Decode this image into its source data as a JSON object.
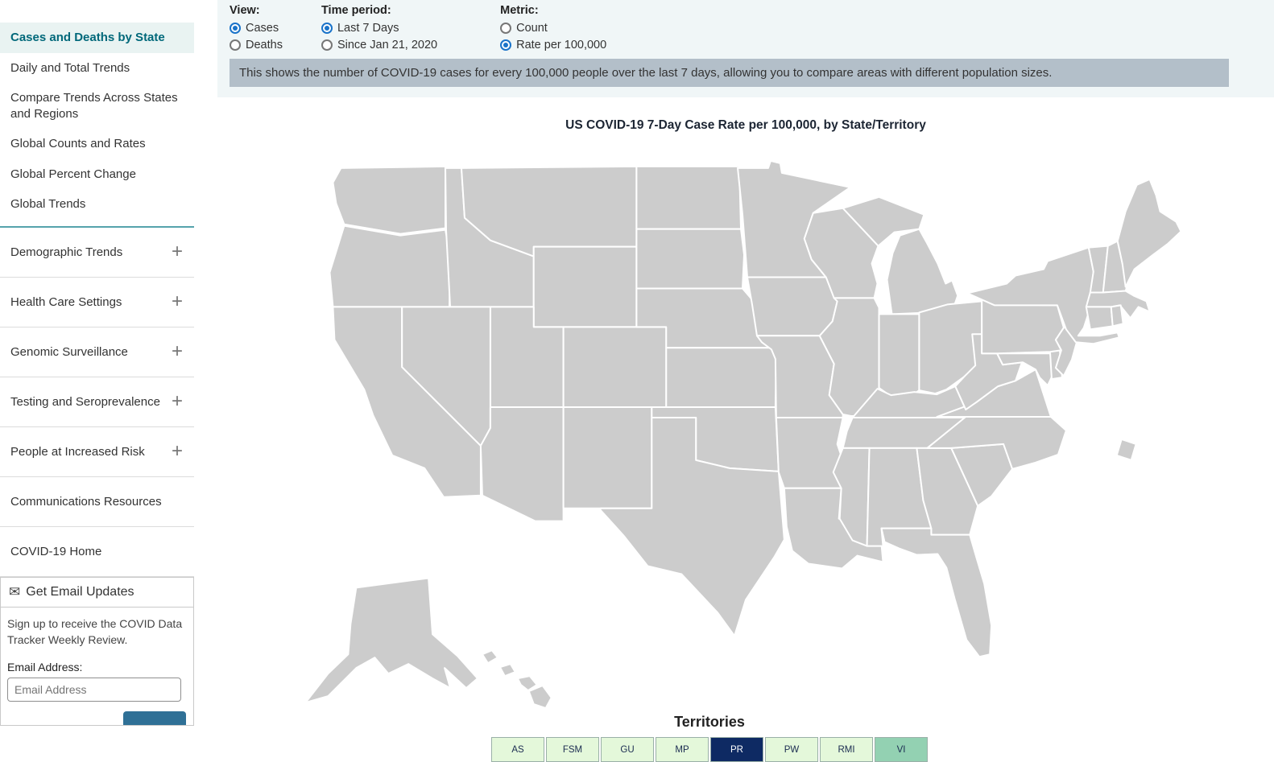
{
  "sidebar": {
    "nav_items": [
      {
        "label": "Cases and Deaths by State",
        "active": true
      },
      {
        "label": "Daily and Total Trends",
        "active": false
      },
      {
        "label": "Compare Trends Across States and Regions",
        "active": false
      },
      {
        "label": "Global Counts and Rates",
        "active": false
      },
      {
        "label": "Global Percent Change",
        "active": false
      },
      {
        "label": "Global Trends",
        "active": false
      }
    ],
    "expandable_items": [
      {
        "label": "Demographic Trends"
      },
      {
        "label": "Health Care Settings"
      },
      {
        "label": "Genomic Surveillance"
      },
      {
        "label": "Testing and Seroprevalence"
      },
      {
        "label": "People at Increased Risk"
      }
    ],
    "link_items": [
      {
        "label": "Communications Resources"
      },
      {
        "label": "COVID-19 Home"
      }
    ],
    "email_signup": {
      "title": "Get Email Updates",
      "icon": "envelope-icon",
      "description": "Sign up to receive the COVID Data Tracker Weekly Review.",
      "email_label": "Email Address:",
      "email_placeholder": "Email Address"
    }
  },
  "controls": {
    "groups": [
      {
        "label": "View:",
        "options": [
          {
            "label": "Cases",
            "selected": true
          },
          {
            "label": "Deaths",
            "selected": false
          }
        ]
      },
      {
        "label": "Time period:",
        "options": [
          {
            "label": "Last 7 Days",
            "selected": true
          },
          {
            "label": "Since Jan 21, 2020",
            "selected": false
          }
        ]
      },
      {
        "label": "Metric:",
        "options": [
          {
            "label": "Count",
            "selected": false
          },
          {
            "label": "Rate per 100,000",
            "selected": true
          }
        ]
      }
    ]
  },
  "info_banner": "This shows the number of COVID-19 cases for every 100,000 people over the last 7 days, allowing you to compare areas with different population sizes.",
  "theme": {
    "active_nav_color": "#00687a",
    "active_nav_bg": "#e9f3f2",
    "banner_bg": "#b3bfc9",
    "radio_selected": "#1a73c9",
    "sidebar_divider": "#55a3ac",
    "submit_button": "#2f7096"
  },
  "map": {
    "title": "US COVID-19 7-Day Case Rate per 100,000, by State/Territory",
    "type": "choropleth",
    "palette": {
      "lowest": "#e9fae3",
      "low": "#b4dcc0",
      "medium": "#7fc8cc",
      "high": "#4189c9",
      "higher": "#3d6bb3",
      "highest": "#0e2a63",
      "no_data_pattern": "striped"
    },
    "state_colors": {
      "WA": "#3d6bb3",
      "OR": "#3d6bb3",
      "CA": "#e9fae3",
      "ID": "#68c5c2",
      "MT": "#6bc7c9",
      "WY": "#68c5c2",
      "NV": "#6bc7c4",
      "UT": "#59b8c4",
      "AZ": "#6fc8bf",
      "CO": "#0e2a63",
      "NM": "#b2dcc2",
      "ND": "#3b86c8",
      "SD": "#4189c9",
      "NE": "#4a94d3",
      "KS": "#b7d9c0",
      "OK": "#b4dcc0",
      "TX": "#b7e0c3",
      "MN": "#0e2a63",
      "IA": "#8fc8d8",
      "MO": "#bad9c5",
      "AR": "#b4dcc0",
      "LA": "#b7e0c3",
      "WI": "#9ad3b8",
      "IL": "#4a74ba",
      "MI": "#12336e",
      "IN": "#55a5cd",
      "OH": "#7fc8cc",
      "KY": "#85cac6",
      "TN": "#4693cb",
      "MS": "striped",
      "AL": "striped",
      "GA": "#7ec7c3",
      "SC": "#7ec7c3",
      "NC": "#4693cb",
      "FL": "#3d6cb8",
      "VA": "#97c8e0",
      "WV": "#4a74ba",
      "MD": "#4a94d3",
      "DE": "#16316b",
      "NJ": "#142f68",
      "PA": "#101f4e",
      "NY": "#4a7cc2",
      "VT": "#9ad3b8",
      "NH": "#5d87b8",
      "ME": "#0e2a63",
      "MA": "#4a7cc2",
      "CT": "#13295c",
      "RI": "#2b4a8c",
      "DC": "#68c5c2",
      "AK": "#3d6bb3",
      "HI": "#e9fae3"
    },
    "territories_heading": "Territories",
    "territories": [
      {
        "code": "AS",
        "bg": "#e4f8da",
        "text": "#1a2b50"
      },
      {
        "code": "FSM",
        "bg": "#e4f8da",
        "text": "#1a2b50"
      },
      {
        "code": "GU",
        "bg": "#e4f8da",
        "text": "#1a2b50"
      },
      {
        "code": "MP",
        "bg": "#e4f8da",
        "text": "#1a2b50"
      },
      {
        "code": "PR",
        "bg": "#0e2a63",
        "text": "#ffffff"
      },
      {
        "code": "PW",
        "bg": "#e4f8da",
        "text": "#1a2b50"
      },
      {
        "code": "RMI",
        "bg": "#e4f8da",
        "text": "#1a2b50"
      },
      {
        "code": "VI",
        "bg": "#93d1b2",
        "text": "#1a2b50"
      }
    ]
  }
}
